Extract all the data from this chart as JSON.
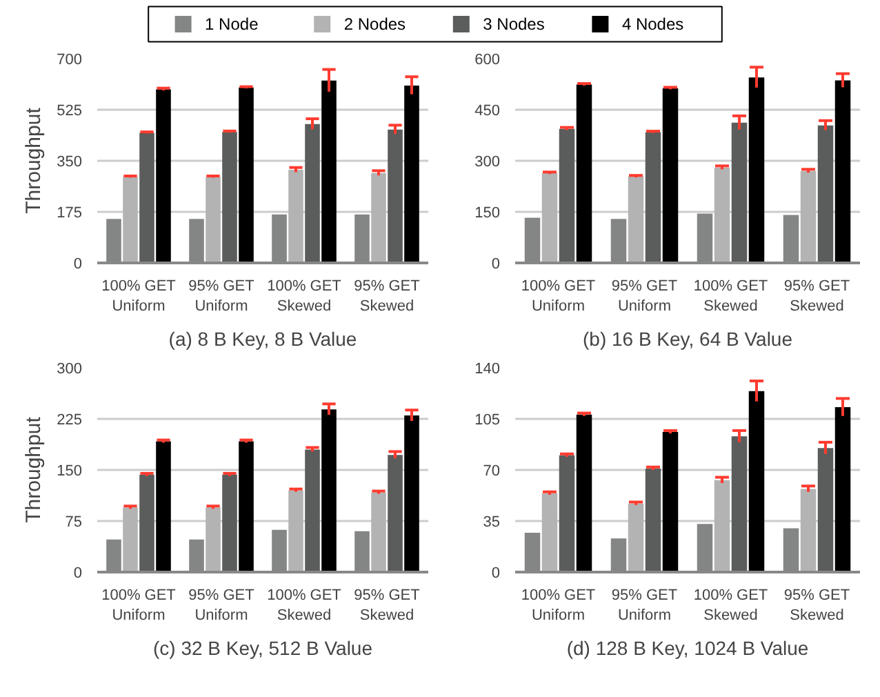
{
  "chart_data": [
    {
      "type": "bar",
      "title": "(a) 8 B Key, 8 B Value",
      "ylabel": "Throughput",
      "categories": [
        "100% GET\nUniform",
        "95% GET\nUniform",
        "100% GET\nSkewed",
        "95% GET\nSkewed"
      ],
      "ylim": [
        0,
        700
      ],
      "yticks": [
        0,
        175,
        350,
        525,
        700
      ],
      "grid": "y",
      "legend": "top",
      "series": [
        {
          "name": "1 Node",
          "color": "#838684",
          "values": [
            151,
            151,
            166,
            166
          ]
        },
        {
          "name": "2 Nodes",
          "color": "#b3b3b3",
          "values": [
            295,
            295,
            319,
            308
          ],
          "errors": [
            3,
            3,
            8,
            8
          ]
        },
        {
          "name": "3 Nodes",
          "color": "#5a5d5b",
          "values": [
            446,
            449,
            476,
            457
          ],
          "errors": [
            3,
            3,
            18,
            15
          ]
        },
        {
          "name": "4 Nodes",
          "color": "#000000",
          "values": [
            595,
            601,
            625,
            608
          ],
          "errors": [
            4,
            3,
            38,
            30
          ]
        }
      ]
    },
    {
      "type": "bar",
      "title": "(b) 16 B Key, 64 B Value",
      "categories": [
        "100% GET\nUniform",
        "95% GET\nUniform",
        "100% GET\nSkewed",
        "95% GET\nSkewed"
      ],
      "ylim": [
        0,
        600
      ],
      "yticks": [
        0,
        150,
        300,
        450,
        600
      ],
      "grid": "y",
      "series": [
        {
          "color": "#838684",
          "values": [
            133,
            129,
            145,
            141
          ]
        },
        {
          "color": "#b3b3b3",
          "values": [
            264,
            254,
            280,
            270
          ],
          "errors": [
            3,
            3,
            5,
            5
          ]
        },
        {
          "color": "#5a5d5b",
          "values": [
            394,
            384,
            412,
            404
          ],
          "errors": [
            4,
            3,
            20,
            14
          ]
        },
        {
          "color": "#000000",
          "values": [
            524,
            513,
            545,
            536
          ],
          "errors": [
            3,
            3,
            30,
            20
          ]
        }
      ]
    },
    {
      "type": "bar",
      "title": "(c) 32 B Key, 512 B Value",
      "ylabel": "Throughput",
      "categories": [
        "100% GET\nUniform",
        "95% GET\nUniform",
        "100% GET\nSkewed",
        "95% GET\nSkewed"
      ],
      "ylim": [
        0,
        300
      ],
      "yticks": [
        0,
        75,
        150,
        225,
        300
      ],
      "grid": "y",
      "series": [
        {
          "color": "#838684",
          "values": [
            48,
            48,
            62,
            60
          ]
        },
        {
          "color": "#b3b3b3",
          "values": [
            95,
            95,
            120,
            117
          ],
          "errors": [
            2,
            2,
            2,
            2
          ]
        },
        {
          "color": "#5a5d5b",
          "values": [
            143,
            143,
            180,
            172
          ],
          "errors": [
            2,
            2,
            3,
            5
          ]
        },
        {
          "color": "#000000",
          "values": [
            192,
            192,
            239,
            230
          ],
          "errors": [
            2,
            2,
            8,
            8
          ]
        }
      ]
    },
    {
      "type": "bar",
      "title": "(d) 128 B Key, 1024 B Value",
      "categories": [
        "100% GET\nUniform",
        "95% GET\nUniform",
        "100% GET\nSkewed",
        "95% GET\nSkewed"
      ],
      "ylim": [
        0,
        140
      ],
      "yticks": [
        0,
        35,
        70,
        105,
        140
      ],
      "grid": "y",
      "series": [
        {
          "color": "#838684",
          "values": [
            27,
            23,
            33,
            30
          ]
        },
        {
          "color": "#b3b3b3",
          "values": [
            54,
            47,
            63,
            57
          ],
          "errors": [
            1,
            1,
            2,
            2
          ]
        },
        {
          "color": "#5a5d5b",
          "values": [
            80,
            71,
            93,
            85
          ],
          "errors": [
            1,
            1,
            4,
            4
          ]
        },
        {
          "color": "#000000",
          "values": [
            108,
            96,
            124,
            113
          ],
          "errors": [
            1,
            1,
            7,
            6
          ]
        }
      ]
    }
  ]
}
